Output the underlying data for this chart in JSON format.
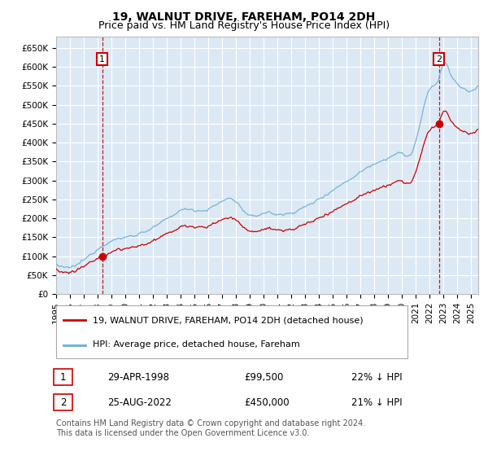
{
  "title": "19, WALNUT DRIVE, FAREHAM, PO14 2DH",
  "subtitle": "Price paid vs. HM Land Registry's House Price Index (HPI)",
  "ylabel_ticks": [
    "£0",
    "£50K",
    "£100K",
    "£150K",
    "£200K",
    "£250K",
    "£300K",
    "£350K",
    "£400K",
    "£450K",
    "£500K",
    "£550K",
    "£600K",
    "£650K"
  ],
  "ytick_values": [
    0,
    50000,
    100000,
    150000,
    200000,
    250000,
    300000,
    350000,
    400000,
    450000,
    500000,
    550000,
    600000,
    650000
  ],
  "ylim": [
    0,
    680000
  ],
  "xlim_years": [
    1995.0,
    2025.5
  ],
  "background_color": "#dce9f5",
  "grid_color": "#ffffff",
  "hpi_color": "#6aaed6",
  "price_color": "#cc0000",
  "dashed_color": "#cc0000",
  "marker1_year": 1998.33,
  "marker1_price": 99500,
  "marker2_year": 2022.65,
  "marker2_price": 450000,
  "legend_label1": "19, WALNUT DRIVE, FAREHAM, PO14 2DH (detached house)",
  "legend_label2": "HPI: Average price, detached house, Fareham",
  "table_rows": [
    {
      "num": "1",
      "date": "29-APR-1998",
      "price": "£99,500",
      "hpi": "22% ↓ HPI"
    },
    {
      "num": "2",
      "date": "25-AUG-2022",
      "price": "£450,000",
      "hpi": "21% ↓ HPI"
    }
  ],
  "footer": "Contains HM Land Registry data © Crown copyright and database right 2024.\nThis data is licensed under the Open Government Licence v3.0.",
  "title_fontsize": 10,
  "subtitle_fontsize": 9,
  "tick_fontsize": 7.5,
  "legend_fontsize": 8,
  "footer_fontsize": 7
}
